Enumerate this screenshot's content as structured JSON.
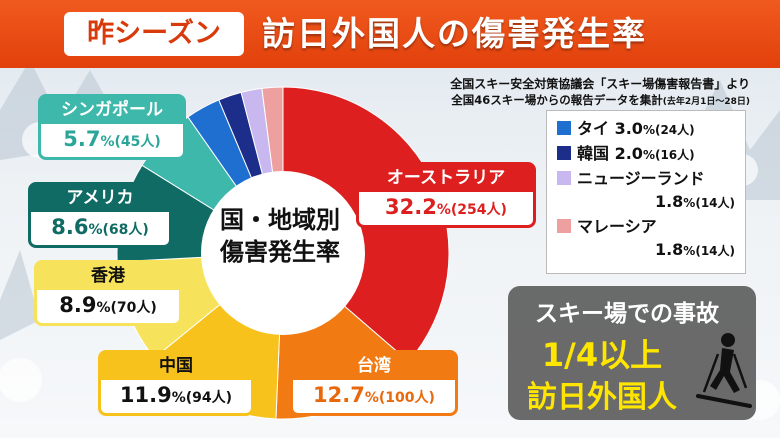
{
  "header": {
    "badge": "昨シーズン",
    "title": "訪日外国人の傷害発生率"
  },
  "source": {
    "line1": "全国スキー安全対策協議会「スキー場傷害報告書」より",
    "line2": "全国46スキー場からの報告データを集計",
    "line2_note": "(去年2月1日〜28日)"
  },
  "center_label": [
    "国・地域別",
    "傷害発生率"
  ],
  "chart_data": {
    "type": "pie",
    "title": "訪日外国人の傷害発生率",
    "slices": [
      {
        "name": "オーストラリア",
        "value": 32.2,
        "count": "254人",
        "color": "#dd1f1f"
      },
      {
        "name": "台湾",
        "value": 12.7,
        "count": "100人",
        "color": "#f27a12"
      },
      {
        "name": "中国",
        "value": 11.9,
        "count": "94人",
        "color": "#f7c21b"
      },
      {
        "name": "香港",
        "value": 8.9,
        "count": "70人",
        "color": "#f6e25b"
      },
      {
        "name": "アメリカ",
        "value": 8.6,
        "count": "68人",
        "color": "#0f6b64"
      },
      {
        "name": "シンガポール",
        "value": 5.7,
        "count": "45人",
        "color": "#3fb8ac"
      },
      {
        "name": "タイ",
        "value": 3.0,
        "count": "24人",
        "color": "#1f6fd1"
      },
      {
        "name": "韓国",
        "value": 2.0,
        "count": "16人",
        "color": "#1c2e8a"
      },
      {
        "name": "ニュージーランド",
        "value": 1.8,
        "count": "14人",
        "color": "#c9b8ef"
      },
      {
        "name": "マレーシア",
        "value": 1.8,
        "count": "14人",
        "color": "#eea0a0"
      }
    ],
    "labels": {
      "australia": {
        "name": "オーストラリア",
        "pct": "32.2",
        "cnt": "(254人)"
      },
      "taiwan": {
        "name": "台湾",
        "pct": "12.7",
        "cnt": "(100人)"
      },
      "china": {
        "name": "中国",
        "pct": "11.9",
        "cnt": "(94人)"
      },
      "hongkong": {
        "name": "香港",
        "pct": "8.9",
        "cnt": "(70人)"
      },
      "usa": {
        "name": "アメリカ",
        "pct": "8.6",
        "cnt": "(68人)"
      },
      "singapore": {
        "name": "シンガポール",
        "pct": "5.7",
        "cnt": "(45人)"
      }
    },
    "pct_unit": "%",
    "legend": [
      {
        "name": "タイ",
        "pct": "3.0",
        "cnt": "(24人)"
      },
      {
        "name": "韓国",
        "pct": "2.0",
        "cnt": "(16人)"
      },
      {
        "name": "ニュージーランド",
        "pct": "1.8",
        "cnt": "(14人)"
      },
      {
        "name": "マレーシア",
        "pct": "1.8",
        "cnt": "(14人)"
      }
    ]
  },
  "accident": {
    "line1": "スキー場での事故",
    "line2": "1/4以上",
    "line3": "訪日外国人"
  }
}
